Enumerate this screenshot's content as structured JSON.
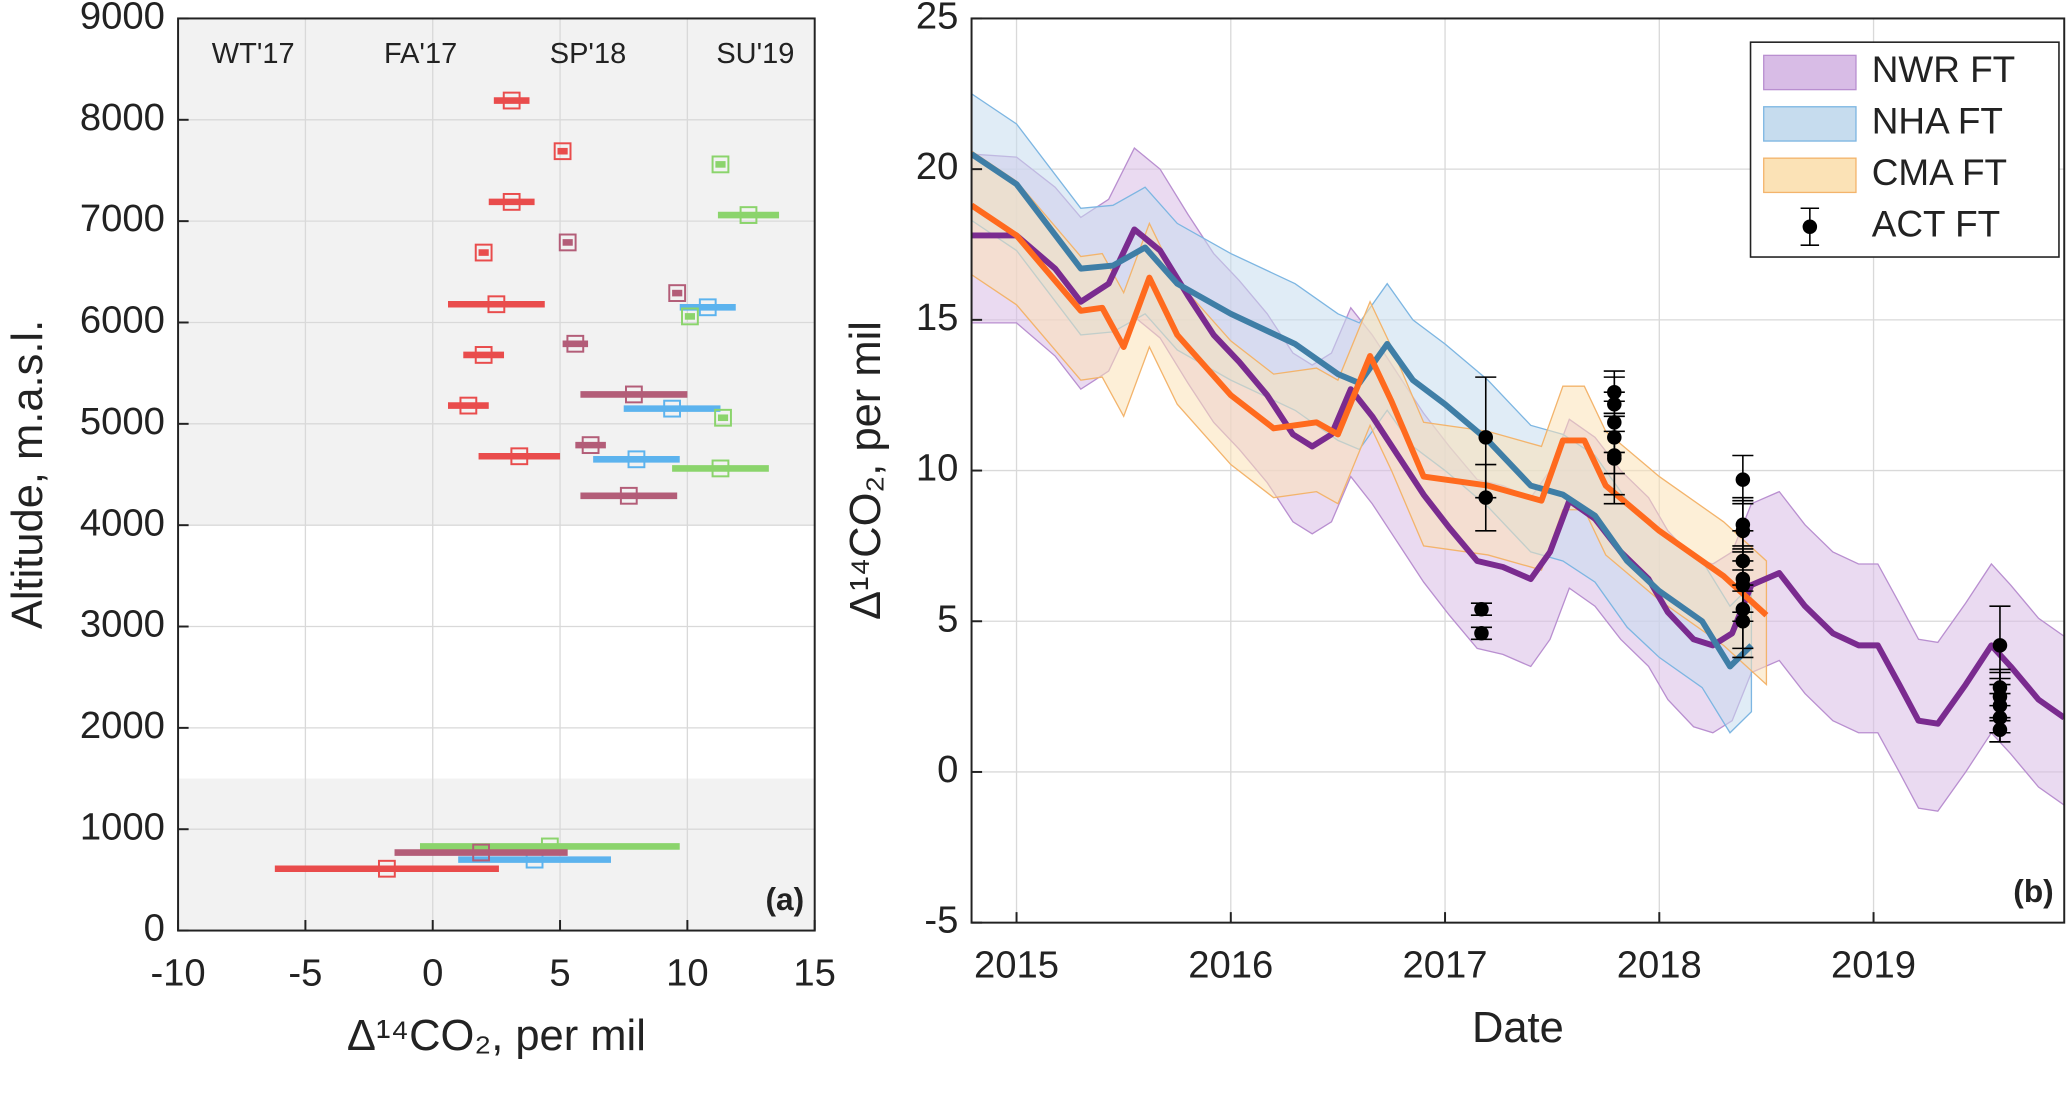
{
  "chart_data": [
    {
      "type": "scatter",
      "annotation": "(a)",
      "x_label": "Δ¹⁴CO₂, per mil",
      "y_label": "Altitude, m.a.s.l.",
      "xlim": [
        -10,
        15
      ],
      "xticks": [
        -10,
        -5,
        0,
        5,
        10,
        15
      ],
      "ylim": [
        0,
        9000
      ],
      "yticks": [
        0,
        1000,
        2000,
        3000,
        4000,
        5000,
        6000,
        7000,
        8000,
        9000
      ],
      "grid": true,
      "legend": "top",
      "shade_color": "#f2f2f2",
      "shaded_ranges": [
        [
          4000,
          9000
        ],
        [
          0,
          1500
        ]
      ],
      "series": [
        {
          "name": "WT'17",
          "color": "#5cb3ee",
          "x": [
            10.8,
            9.4,
            8.0,
            4.0
          ],
          "values": [
            6150,
            5150,
            4650,
            700
          ],
          "x_errors": [
            1.1,
            1.9,
            1.7,
            3.0
          ]
        },
        {
          "name": "FA'17",
          "color": "#8bd46c",
          "x": [
            11.3,
            12.4,
            10.1,
            11.4,
            11.3,
            4.6
          ],
          "values": [
            7560,
            7060,
            6060,
            5060,
            4560,
            830
          ],
          "x_errors": [
            0.2,
            1.2,
            0.2,
            0.2,
            1.9,
            5.1
          ]
        },
        {
          "name": "SP'18",
          "color": "#b35d78",
          "x": [
            5.3,
            9.6,
            5.6,
            7.9,
            6.2,
            7.7,
            1.9
          ],
          "values": [
            6790,
            6290,
            5790,
            5290,
            4790,
            4290,
            770
          ],
          "x_errors": [
            0.2,
            0.2,
            0.5,
            2.1,
            0.6,
            1.9,
            3.4
          ]
        },
        {
          "name": "SU'19",
          "color": "#e94c4c",
          "x": [
            3.1,
            5.1,
            3.1,
            2.0,
            2.5,
            2.0,
            1.4,
            3.4,
            -1.8
          ],
          "values": [
            8190,
            7690,
            7190,
            6690,
            6180,
            5680,
            5180,
            4680,
            610
          ],
          "x_errors": [
            0.7,
            0.2,
            0.9,
            0.2,
            1.9,
            0.8,
            0.8,
            1.6,
            4.4
          ]
        }
      ]
    },
    {
      "type": "line",
      "annotation": "(b)",
      "x_label": "Date",
      "y_label": "Δ¹⁴CO₂, per mil",
      "xlim": [
        2014.79,
        2019.89
      ],
      "xticks": [
        2015,
        2016,
        2017,
        2018,
        2019
      ],
      "ylim": [
        -5,
        25
      ],
      "yticks": [
        -5,
        0,
        5,
        10,
        15,
        20,
        25
      ],
      "grid": true,
      "legend": "upper right",
      "series": [
        {
          "name": "NWR FT",
          "style": "line_with_band",
          "color": "#7a2b8f",
          "band_color": "#d8bce6",
          "band_edge": "#b98fd0",
          "x": [
            2014.79,
            2015.0,
            2015.18,
            2015.3,
            2015.43,
            2015.55,
            2015.67,
            2015.8,
            2015.92,
            2016.04,
            2016.17,
            2016.29,
            2016.38,
            2016.47,
            2016.56,
            2016.66,
            2016.78,
            2016.9,
            2017.02,
            2017.15,
            2017.27,
            2017.4,
            2017.49,
            2017.58,
            2017.7,
            2017.82,
            2017.95,
            2018.04,
            2018.16,
            2018.25,
            2018.34,
            2018.43,
            2018.56,
            2018.68,
            2018.81,
            2018.93,
            2019.02,
            2019.12,
            2019.21,
            2019.3,
            2019.43,
            2019.55,
            2019.64,
            2019.77,
            2019.89
          ],
          "values": [
            17.8,
            17.8,
            16.7,
            15.6,
            16.2,
            18.0,
            17.3,
            15.8,
            14.5,
            13.6,
            12.5,
            11.2,
            10.8,
            11.2,
            12.7,
            11.8,
            10.5,
            9.2,
            8.1,
            7.0,
            6.8,
            6.4,
            7.3,
            9.0,
            8.4,
            7.3,
            6.4,
            5.3,
            4.4,
            4.2,
            4.6,
            6.2,
            6.6,
            5.5,
            4.6,
            4.2,
            4.2,
            2.9,
            1.7,
            1.6,
            2.9,
            4.2,
            3.5,
            2.4,
            1.8
          ],
          "upper": [
            20.5,
            20.4,
            19.4,
            18.4,
            19.0,
            20.7,
            20.0,
            18.5,
            17.2,
            16.3,
            15.2,
            13.9,
            13.5,
            13.9,
            15.4,
            14.5,
            13.2,
            11.9,
            10.8,
            9.7,
            9.5,
            9.1,
            10.0,
            11.7,
            11.1,
            10.0,
            9.1,
            8.0,
            7.1,
            6.9,
            7.3,
            8.9,
            9.3,
            8.2,
            7.3,
            6.9,
            6.9,
            5.6,
            4.4,
            4.3,
            5.6,
            6.9,
            6.2,
            5.1,
            4.5
          ],
          "lower": [
            14.9,
            14.9,
            13.8,
            12.7,
            13.3,
            15.1,
            14.4,
            12.9,
            11.6,
            10.7,
            9.6,
            8.3,
            7.9,
            8.3,
            9.8,
            8.9,
            7.6,
            6.3,
            5.2,
            4.1,
            3.9,
            3.5,
            4.4,
            6.1,
            5.5,
            4.4,
            3.5,
            2.4,
            1.5,
            1.3,
            1.7,
            3.3,
            3.7,
            2.6,
            1.7,
            1.3,
            1.3,
            0.0,
            -1.2,
            -1.3,
            0.0,
            1.3,
            0.6,
            -0.5,
            -1.1
          ]
        },
        {
          "name": "NHA FT",
          "style": "line_with_band",
          "color": "#3f7ea6",
          "band_color": "#c6dcee",
          "band_edge": "#7db6e2",
          "x": [
            2014.79,
            2015.0,
            2015.3,
            2015.45,
            2015.6,
            2015.75,
            2016.0,
            2016.3,
            2016.5,
            2016.6,
            2016.73,
            2016.85,
            2017.0,
            2017.2,
            2017.4,
            2017.55,
            2017.7,
            2017.85,
            2018.0,
            2018.2,
            2018.33,
            2018.43
          ],
          "values": [
            20.5,
            19.5,
            16.7,
            16.8,
            17.4,
            16.2,
            15.2,
            14.2,
            13.2,
            12.9,
            14.2,
            13.0,
            12.2,
            11.0,
            9.5,
            9.2,
            8.5,
            7.0,
            6.0,
            5.0,
            3.5,
            4.2
          ],
          "upper": [
            22.5,
            21.5,
            18.7,
            18.8,
            19.4,
            18.2,
            17.2,
            16.2,
            15.2,
            14.9,
            16.2,
            15.0,
            14.2,
            13.0,
            11.5,
            11.2,
            10.5,
            9.0,
            8.0,
            7.0,
            5.5,
            6.2
          ],
          "lower": [
            18.3,
            17.3,
            14.5,
            14.6,
            15.2,
            14.0,
            13.0,
            12.0,
            11.0,
            10.7,
            12.0,
            10.8,
            10.0,
            8.8,
            7.3,
            7.0,
            6.3,
            4.8,
            3.8,
            2.8,
            1.3,
            2.0
          ]
        },
        {
          "name": "CMA FT",
          "style": "line_with_band",
          "color": "#ff6a1e",
          "band_color": "#fbe2b6",
          "band_edge": "#f3b46c",
          "x": [
            2014.79,
            2015.0,
            2015.3,
            2015.4,
            2015.5,
            2015.62,
            2015.75,
            2016.0,
            2016.2,
            2016.4,
            2016.5,
            2016.65,
            2016.75,
            2016.9,
            2017.2,
            2017.45,
            2017.55,
            2017.65,
            2017.75,
            2018.0,
            2018.3,
            2018.5
          ],
          "values": [
            18.8,
            17.8,
            15.3,
            15.4,
            14.1,
            16.4,
            14.5,
            12.5,
            11.4,
            11.6,
            11.2,
            13.8,
            12.3,
            9.8,
            9.5,
            9.0,
            11.0,
            11.0,
            9.5,
            8.0,
            6.5,
            5.2
          ],
          "upper": [
            20.6,
            19.6,
            17.1,
            17.2,
            15.9,
            18.2,
            16.3,
            14.3,
            13.2,
            13.4,
            13.0,
            15.6,
            14.1,
            11.6,
            11.3,
            10.8,
            12.8,
            12.8,
            11.3,
            9.8,
            8.3,
            7.0
          ],
          "lower": [
            16.5,
            15.5,
            13.0,
            13.1,
            11.8,
            14.1,
            12.2,
            10.2,
            9.1,
            9.3,
            8.9,
            11.5,
            10.0,
            7.5,
            7.2,
            6.7,
            8.7,
            8.7,
            7.2,
            5.7,
            4.2,
            2.9
          ]
        },
        {
          "name": "ACT FT",
          "style": "points_with_errorbars",
          "color": "#000000",
          "x": [
            2017.19,
            2017.19,
            2017.17,
            2017.17,
            2017.79,
            2017.79,
            2017.79,
            2017.79,
            2017.79,
            2017.79,
            2018.39,
            2018.39,
            2018.39,
            2018.39,
            2018.39,
            2018.39,
            2018.39,
            2018.39,
            2019.59,
            2019.59,
            2019.59,
            2019.59,
            2019.59,
            2019.59
          ],
          "values": [
            11.1,
            9.1,
            5.4,
            4.6,
            12.6,
            12.2,
            11.6,
            11.1,
            10.5,
            10.4,
            9.7,
            8.2,
            8.0,
            7.0,
            6.4,
            6.2,
            5.4,
            5.0,
            4.2,
            2.8,
            2.5,
            2.2,
            1.8,
            1.4
          ],
          "errors": [
            2.0,
            1.1,
            0.2,
            0.2,
            0.7,
            0.9,
            1.0,
            1.2,
            1.3,
            1.5,
            0.8,
            0.9,
            1.0,
            1.0,
            1.1,
            1.2,
            1.3,
            1.2,
            1.3,
            0.6,
            0.8,
            0.9,
            0.8,
            0.4
          ]
        }
      ]
    }
  ]
}
